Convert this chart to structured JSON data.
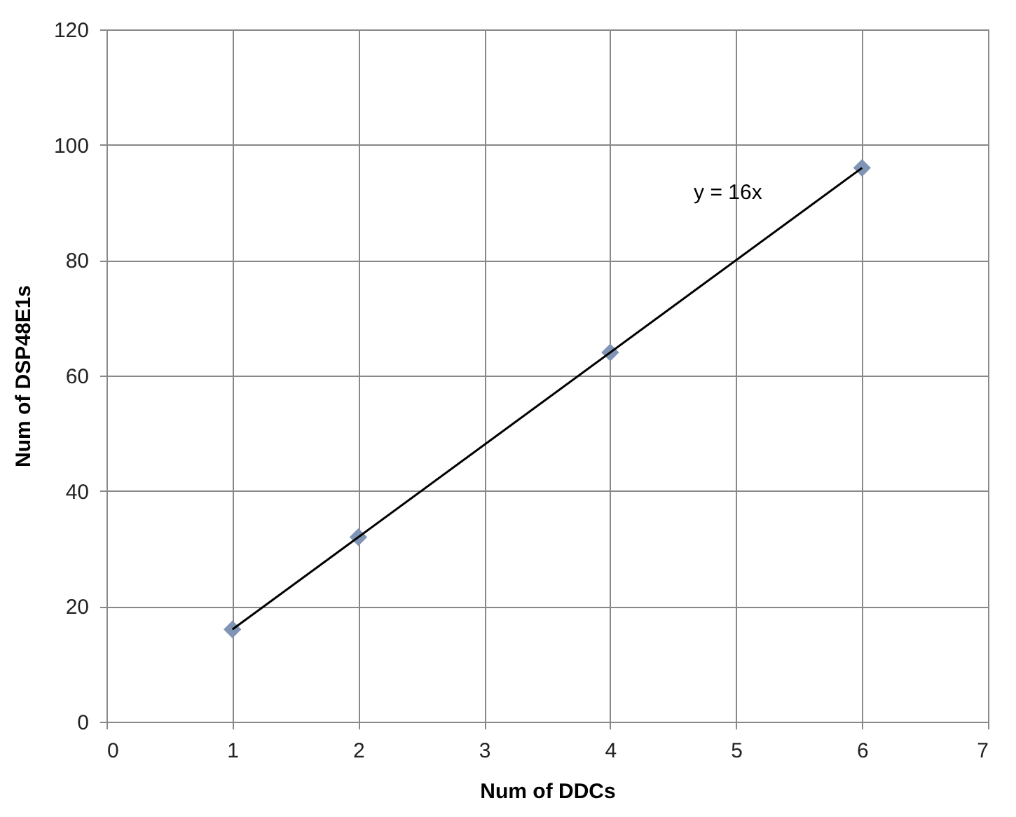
{
  "chart_data": {
    "type": "scatter",
    "xlabel": "Num of DDCs",
    "ylabel": "Num of DSP48E1s",
    "x": [
      1,
      2,
      4,
      6
    ],
    "series": [
      {
        "marker": "diamond",
        "color": "#8095b5",
        "values": [
          16,
          32,
          64,
          96
        ]
      },
      {
        "type": "line",
        "marker": "none",
        "color": "#000000",
        "x": [
          1,
          6
        ],
        "values": [
          16,
          96
        ]
      }
    ],
    "annotations": [
      "y = 16x"
    ],
    "xlim": [
      0,
      7
    ],
    "xticks": [
      0,
      1,
      2,
      3,
      4,
      5,
      6,
      7
    ],
    "ylim": [
      0,
      120
    ],
    "yticks": [
      0,
      20,
      40,
      60,
      80,
      100,
      120
    ],
    "grid": true
  }
}
